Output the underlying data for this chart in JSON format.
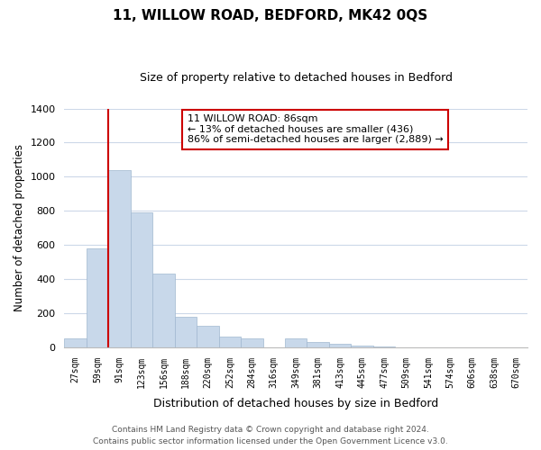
{
  "title": "11, WILLOW ROAD, BEDFORD, MK42 0QS",
  "subtitle": "Size of property relative to detached houses in Bedford",
  "xlabel": "Distribution of detached houses by size in Bedford",
  "ylabel": "Number of detached properties",
  "bar_labels": [
    "27sqm",
    "59sqm",
    "91sqm",
    "123sqm",
    "156sqm",
    "188sqm",
    "220sqm",
    "252sqm",
    "284sqm",
    "316sqm",
    "349sqm",
    "381sqm",
    "413sqm",
    "445sqm",
    "477sqm",
    "509sqm",
    "541sqm",
    "574sqm",
    "606sqm",
    "638sqm",
    "670sqm"
  ],
  "bar_values": [
    50,
    580,
    1040,
    790,
    430,
    180,
    125,
    65,
    50,
    0,
    50,
    30,
    20,
    10,
    5,
    0,
    0,
    0,
    0,
    0,
    0
  ],
  "bar_color": "#c8d8ea",
  "bar_edge_color": "#a0b8d0",
  "vline_color": "#cc0000",
  "annotation_line1": "11 WILLOW ROAD: 86sqm",
  "annotation_line2": "← 13% of detached houses are smaller (436)",
  "annotation_line3": "86% of semi-detached houses are larger (2,889) →",
  "annotation_box_color": "#ffffff",
  "annotation_box_edge": "#cc0000",
  "ylim": [
    0,
    1400
  ],
  "yticks": [
    0,
    200,
    400,
    600,
    800,
    1000,
    1200,
    1400
  ],
  "footer_line1": "Contains HM Land Registry data © Crown copyright and database right 2024.",
  "footer_line2": "Contains public sector information licensed under the Open Government Licence v3.0.",
  "bg_color": "#ffffff",
  "grid_color": "#ccd8e8"
}
